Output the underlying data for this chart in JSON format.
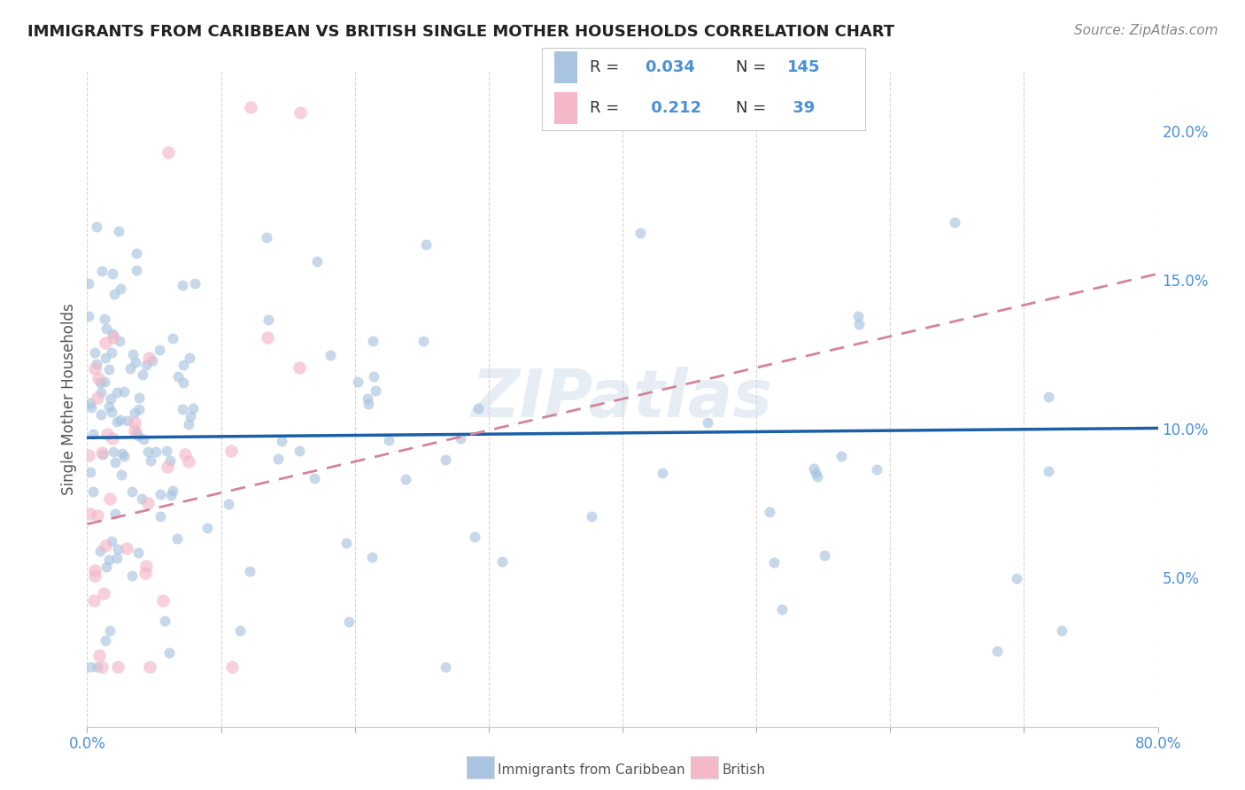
{
  "title": "IMMIGRANTS FROM CARIBBEAN VS BRITISH SINGLE MOTHER HOUSEHOLDS CORRELATION CHART",
  "source": "Source: ZipAtlas.com",
  "ylabel_text": "Single Mother Households",
  "x_min": 0.0,
  "x_max": 0.8,
  "y_min": 0.0,
  "y_max": 0.22,
  "blue_R": 0.034,
  "blue_N": 145,
  "pink_R": 0.212,
  "pink_N": 39,
  "blue_color": "#a8c4e0",
  "pink_color": "#f4b8c8",
  "blue_line_color": "#1a5fa8",
  "pink_line_color": "#d4849a",
  "grid_color": "#cccccc",
  "blue_trend_intercept": 0.097,
  "blue_trend_slope": 0.004,
  "pink_trend_intercept": 0.068,
  "pink_trend_slope": 0.105,
  "watermark": "ZIPatlas",
  "legend_label_blue": "Immigrants from Caribbean",
  "legend_label_pink": "British",
  "background_color": "#ffffff",
  "tick_color": "#4a90d9",
  "label_color": "#555555",
  "title_fontsize": 13,
  "source_fontsize": 11,
  "axis_label_fontsize": 12,
  "tick_fontsize": 12,
  "legend_fontsize": 13,
  "blue_marker_size": 75,
  "pink_marker_size": 110,
  "blue_alpha": 0.65,
  "pink_alpha": 0.65
}
